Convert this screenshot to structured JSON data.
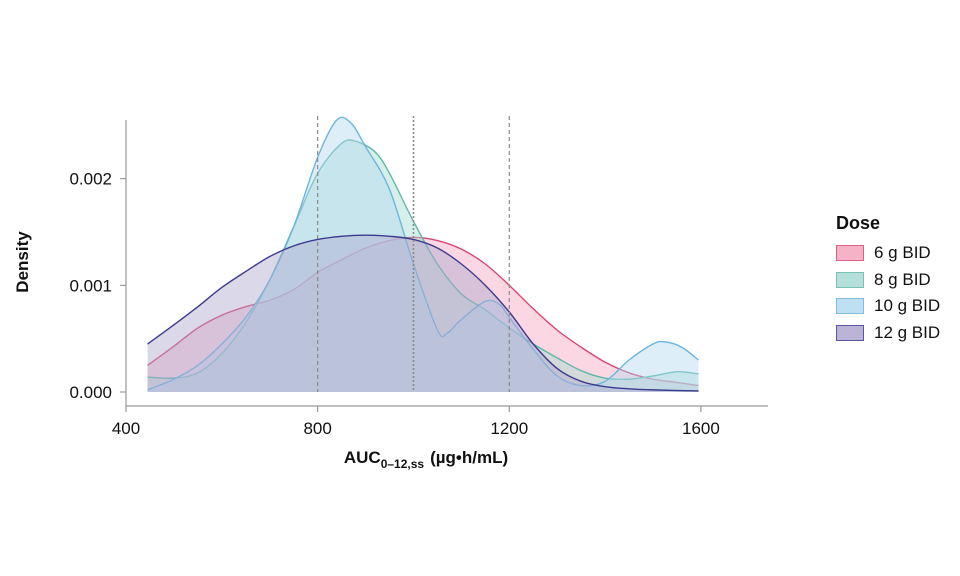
{
  "chart_data": {
    "type": "area",
    "title": "",
    "xlabel": "AUC",
    "xlabel_sub": "0–12,ss",
    "xlabel_unit": "(µg•h/mL)",
    "ylabel": "Density",
    "xlim": [
      400,
      1740
    ],
    "ylim": [
      0,
      0.00255
    ],
    "xticks": [
      400,
      800,
      1200,
      1600
    ],
    "yticks": [
      0.0,
      0.001,
      0.002
    ],
    "ytick_labels": [
      "0.000",
      "0.001",
      "0.002"
    ],
    "reference_lines": [
      800,
      1000,
      1200
    ],
    "grid": false,
    "legend": {
      "title": "Dose",
      "placement": "right"
    },
    "series": [
      {
        "name": "6 g BID",
        "color": "#d9466f",
        "fill": "#f4a6bf",
        "points": [
          [
            445,
            0.00025
          ],
          [
            500,
            0.00043
          ],
          [
            550,
            0.0006
          ],
          [
            600,
            0.00072
          ],
          [
            650,
            0.0008
          ],
          [
            700,
            0.00086
          ],
          [
            750,
            0.00096
          ],
          [
            800,
            0.00112
          ],
          [
            850,
            0.00124
          ],
          [
            900,
            0.00135
          ],
          [
            950,
            0.00142
          ],
          [
            1000,
            0.00145
          ],
          [
            1050,
            0.00142
          ],
          [
            1100,
            0.00134
          ],
          [
            1150,
            0.0012
          ],
          [
            1200,
            0.001
          ],
          [
            1250,
            0.00078
          ],
          [
            1300,
            0.00058
          ],
          [
            1350,
            0.00042
          ],
          [
            1400,
            0.00028
          ],
          [
            1450,
            0.00018
          ],
          [
            1500,
            0.00012
          ],
          [
            1550,
            9e-05
          ],
          [
            1595,
            6e-05
          ]
        ]
      },
      {
        "name": "8 g BID",
        "color": "#5fb8a8",
        "fill": "#a6dcd1",
        "points": [
          [
            445,
            0.00014
          ],
          [
            500,
            0.00013
          ],
          [
            550,
            0.00018
          ],
          [
            600,
            0.00036
          ],
          [
            650,
            0.00065
          ],
          [
            700,
            0.00105
          ],
          [
            750,
            0.00155
          ],
          [
            800,
            0.00205
          ],
          [
            850,
            0.00233
          ],
          [
            880,
            0.00235
          ],
          [
            920,
            0.00225
          ],
          [
            950,
            0.00205
          ],
          [
            1000,
            0.0016
          ],
          [
            1050,
            0.0012
          ],
          [
            1100,
            0.00092
          ],
          [
            1150,
            0.00077
          ],
          [
            1200,
            0.0006
          ],
          [
            1250,
            0.00045
          ],
          [
            1300,
            0.00032
          ],
          [
            1350,
            0.0002
          ],
          [
            1400,
            0.00013
          ],
          [
            1450,
            0.00012
          ],
          [
            1500,
            0.00015
          ],
          [
            1550,
            0.00019
          ],
          [
            1595,
            0.00017
          ]
        ]
      },
      {
        "name": "10 g BID",
        "color": "#6cb5de",
        "fill": "#b4daf2",
        "points": [
          [
            445,
            2e-05
          ],
          [
            500,
            0.00012
          ],
          [
            550,
            0.00025
          ],
          [
            600,
            0.00045
          ],
          [
            650,
            0.0007
          ],
          [
            700,
            0.00105
          ],
          [
            750,
            0.00155
          ],
          [
            800,
            0.0022
          ],
          [
            840,
            0.00255
          ],
          [
            870,
            0.00252
          ],
          [
            900,
            0.0023
          ],
          [
            950,
            0.0019
          ],
          [
            1000,
            0.0012
          ],
          [
            1050,
            0.00058
          ],
          [
            1070,
            0.00055
          ],
          [
            1100,
            0.00068
          ],
          [
            1150,
            0.00085
          ],
          [
            1180,
            0.00082
          ],
          [
            1200,
            0.0007
          ],
          [
            1250,
            0.0004
          ],
          [
            1300,
            0.00015
          ],
          [
            1350,
            6e-05
          ],
          [
            1400,
            0.0001
          ],
          [
            1450,
            0.0003
          ],
          [
            1500,
            0.00045
          ],
          [
            1525,
            0.00047
          ],
          [
            1560,
            0.00042
          ],
          [
            1595,
            0.0003
          ]
        ]
      },
      {
        "name": "12 g BID",
        "color": "#3d3b8e",
        "fill": "#b0a8cf",
        "points": [
          [
            445,
            0.00045
          ],
          [
            500,
            0.00063
          ],
          [
            550,
            0.0008
          ],
          [
            600,
            0.00098
          ],
          [
            650,
            0.00113
          ],
          [
            700,
            0.00127
          ],
          [
            750,
            0.00137
          ],
          [
            800,
            0.00143
          ],
          [
            850,
            0.00146
          ],
          [
            900,
            0.00147
          ],
          [
            950,
            0.00146
          ],
          [
            1000,
            0.00143
          ],
          [
            1050,
            0.00135
          ],
          [
            1100,
            0.0012
          ],
          [
            1150,
            0.001
          ],
          [
            1200,
            0.00075
          ],
          [
            1250,
            0.00045
          ],
          [
            1300,
            0.00022
          ],
          [
            1350,
            0.0001
          ],
          [
            1400,
            5e-05
          ],
          [
            1450,
            3e-05
          ],
          [
            1500,
            2e-05
          ],
          [
            1595,
            1e-05
          ]
        ]
      }
    ]
  }
}
